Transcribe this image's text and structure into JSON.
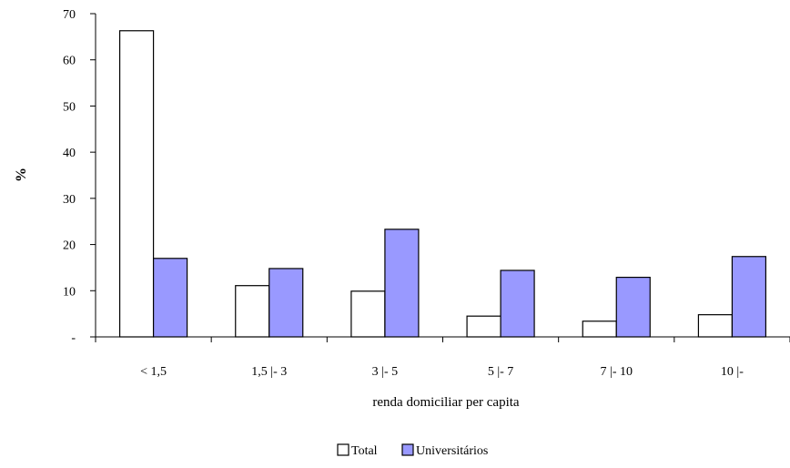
{
  "chart_data": {
    "type": "bar",
    "title": "",
    "xlabel": "renda domiciliar per capita",
    "ylabel": "%",
    "ylim": [
      0,
      70
    ],
    "yticks": [
      0,
      10,
      20,
      30,
      40,
      50,
      60,
      70
    ],
    "ytick_labels": [
      "-",
      "10",
      "20",
      "30",
      "40",
      "50",
      "60",
      "70"
    ],
    "categories": [
      "< 1,5",
      "1,5 |- 3",
      "3 |- 5",
      "5 |- 7",
      "7 |- 10",
      "10 |-"
    ],
    "series": [
      {
        "name": "Total",
        "values": [
          66.3,
          11.1,
          9.9,
          4.5,
          3.4,
          4.8
        ],
        "color": "#ffffff"
      },
      {
        "name": "Universitários",
        "values": [
          17.0,
          14.8,
          23.3,
          14.4,
          12.9,
          17.4
        ],
        "color": "#9999ff"
      }
    ],
    "grid": false,
    "legend_position": "bottom-center"
  }
}
